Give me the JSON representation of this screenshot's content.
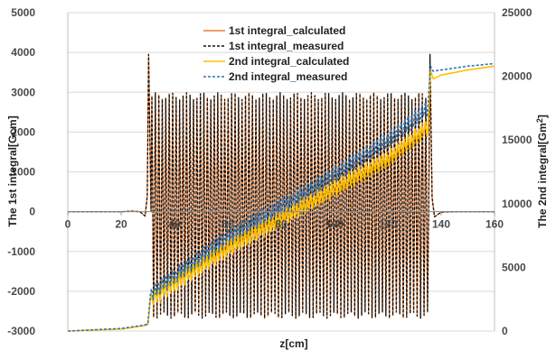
{
  "chart_data": {
    "type": "line",
    "xlabel": "z[cm]",
    "ylabel": "The 1st integral[Gcm]",
    "y2label_main": "The 2nd integral[Gm",
    "y2label_sup": "2",
    "y2label_end": "]",
    "xlim": [
      0,
      160
    ],
    "ylim": [
      -3000,
      5000
    ],
    "y2lim": [
      0,
      25000
    ],
    "xticks": [
      0,
      20,
      40,
      60,
      80,
      100,
      120,
      140,
      160
    ],
    "yticks": [
      -3000,
      -2000,
      -1000,
      0,
      1000,
      2000,
      3000,
      4000,
      5000
    ],
    "y2ticks": [
      0,
      5000,
      10000,
      15000,
      20000,
      25000
    ],
    "grid": "horizontal",
    "legend_position": "top-center",
    "series": [
      {
        "name": "1st integral_calculated",
        "axis": "left",
        "color": "#ED7D31",
        "dash": "solid",
        "x": [
          0,
          20,
          24,
          27,
          29,
          29.8,
          30.3,
          31.2,
          135.3,
          135.8,
          136.6,
          137.5,
          140,
          145,
          160
        ],
        "y": [
          0,
          0,
          10,
          0,
          -110,
          400,
          3950,
          0,
          0,
          3950,
          350,
          -130,
          -10,
          0,
          0
        ],
        "oscillation": {
          "x_start": 31.2,
          "x_end": 135.3,
          "period": 1.3,
          "max": 2900,
          "min": -2600
        }
      },
      {
        "name": "1st integral_measured",
        "axis": "left",
        "color": "#111111",
        "dash": "dashed",
        "x": [
          0,
          20,
          24,
          27,
          29,
          29.8,
          30.3,
          31.2,
          135.3,
          135.8,
          136.6,
          137.5,
          140,
          145,
          160
        ],
        "y": [
          0,
          0,
          10,
          0,
          -110,
          400,
          3950,
          0,
          0,
          3950,
          350,
          -130,
          -10,
          0,
          0
        ],
        "oscillation": {
          "x_start": 31.2,
          "x_end": 135.3,
          "period": 1.3,
          "max": 2900,
          "min": -2600
        }
      },
      {
        "name": "2nd integral_calculated",
        "axis": "right",
        "color": "#FFC000",
        "dash": "solid",
        "x": [
          0,
          20,
          28,
          30,
          31,
          60,
          90,
          120,
          135,
          136,
          137,
          140,
          150,
          160
        ],
        "y": [
          0,
          150,
          400,
          500,
          2500,
          6500,
          10000,
          13500,
          16000,
          20500,
          19800,
          20100,
          20500,
          20800
        ],
        "band": {
          "x_start": 31,
          "x_end": 135,
          "amplitude": 1300
        }
      },
      {
        "name": "2nd integral_measured",
        "axis": "right",
        "color": "#2E75B6",
        "dash": "dashed",
        "x": [
          0,
          20,
          28,
          30,
          31,
          60,
          90,
          120,
          135,
          136,
          137,
          140,
          150,
          160
        ],
        "y": [
          0,
          200,
          450,
          550,
          2900,
          7400,
          11000,
          15000,
          17500,
          20800,
          20400,
          20500,
          20800,
          21000
        ],
        "band": {
          "x_start": 31,
          "x_end": 135,
          "amplitude": 1300
        }
      }
    ]
  }
}
